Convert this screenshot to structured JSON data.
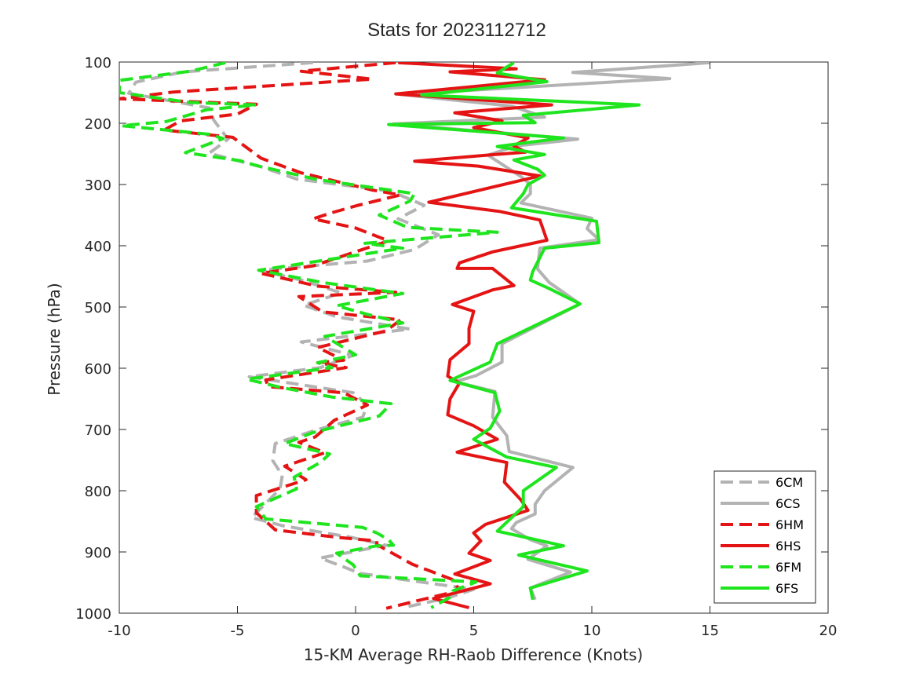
{
  "chart_data": {
    "type": "line",
    "title": "Stats for 2023112712",
    "xlabel": "15-KM Average RH-Raob Difference (Knots)",
    "ylabel": "Pressure (hPa)",
    "xlim": [
      -10,
      20
    ],
    "ylim": [
      100,
      1000
    ],
    "y_reversed": true,
    "xticks": [
      -10,
      -5,
      0,
      5,
      10,
      15,
      20
    ],
    "yticks": [
      100,
      200,
      300,
      400,
      500,
      600,
      700,
      800,
      900,
      1000
    ],
    "grid": false,
    "legend_position": "bottom-right",
    "series": [
      {
        "name": "6CM",
        "color": "#b3b3b3",
        "dash": true,
        "points": [
          [
            -1.8,
            101
          ],
          [
            -7.3,
            116
          ],
          [
            -9.3,
            133
          ],
          [
            -9.6,
            151
          ],
          [
            -6.2,
            175
          ],
          [
            -6.0,
            195
          ],
          [
            -5.4,
            226
          ],
          [
            -6.2,
            249
          ],
          [
            -4.0,
            271
          ],
          [
            -2.5,
            291
          ],
          [
            1.5,
            311
          ],
          [
            2.9,
            334
          ],
          [
            1.8,
            356
          ],
          [
            3.5,
            382
          ],
          [
            2.5,
            406
          ],
          [
            0.5,
            425
          ],
          [
            -4.1,
            440
          ],
          [
            -2.3,
            456
          ],
          [
            -0.6,
            477
          ],
          [
            -2.2,
            497
          ],
          [
            -0.8,
            516
          ],
          [
            2.3,
            536
          ],
          [
            -2.3,
            557
          ],
          [
            -0.1,
            579
          ],
          [
            -1.5,
            599
          ],
          [
            -4.5,
            614
          ],
          [
            -0.1,
            640
          ],
          [
            0.5,
            660
          ],
          [
            0.3,
            680
          ],
          [
            -1.6,
            700
          ],
          [
            -3.4,
            723
          ],
          [
            -3.5,
            751
          ],
          [
            -3.1,
            775
          ],
          [
            -3.2,
            797
          ],
          [
            -4.4,
            844
          ],
          [
            -3.1,
            857
          ],
          [
            -0.2,
            876
          ],
          [
            1.3,
            889
          ],
          [
            -1.5,
            910
          ],
          [
            -0.8,
            920
          ],
          [
            0.2,
            935
          ],
          [
            2.2,
            946
          ],
          [
            5.0,
            961
          ],
          [
            3.9,
            975
          ],
          [
            2.0,
            991
          ]
        ]
      },
      {
        "name": "6CS",
        "color": "#b3b3b3",
        "dash": false,
        "points": [
          [
            15.0,
            101
          ],
          [
            9.2,
            117
          ],
          [
            13.3,
            127
          ],
          [
            1.9,
            153
          ],
          [
            6.6,
            172
          ],
          [
            8.0,
            190
          ],
          [
            1.6,
            201
          ],
          [
            9.4,
            226
          ],
          [
            6.8,
            237
          ],
          [
            5.6,
            252
          ],
          [
            7.0,
            287
          ],
          [
            7.4,
            300
          ],
          [
            7.4,
            315
          ],
          [
            7.0,
            330
          ],
          [
            10.0,
            355
          ],
          [
            9.8,
            372
          ],
          [
            10.3,
            390
          ],
          [
            7.8,
            404
          ],
          [
            7.7,
            438
          ],
          [
            8.2,
            460
          ],
          [
            9.5,
            495
          ],
          [
            6.2,
            560
          ],
          [
            6.2,
            590
          ],
          [
            5.1,
            612
          ],
          [
            4.2,
            622
          ],
          [
            5.9,
            638
          ],
          [
            5.8,
            680
          ],
          [
            6.4,
            710
          ],
          [
            6.5,
            736
          ],
          [
            9.2,
            762
          ],
          [
            8.0,
            800
          ],
          [
            7.6,
            822
          ],
          [
            7.6,
            838
          ],
          [
            6.8,
            852
          ],
          [
            6.6,
            862
          ],
          [
            7.4,
            880
          ],
          [
            8.1,
            890
          ],
          [
            7.3,
            912
          ],
          [
            9.1,
            933
          ],
          [
            7.4,
            959
          ],
          [
            7.6,
            978
          ]
        ]
      },
      {
        "name": "6HM",
        "color": "#e51414",
        "dash": true,
        "points": [
          [
            1.7,
            101
          ],
          [
            -2.3,
            115
          ],
          [
            0.7,
            128
          ],
          [
            -7.7,
            149
          ],
          [
            -10.0,
            160
          ],
          [
            -4.2,
            169
          ],
          [
            -5.0,
            185
          ],
          [
            -7.4,
            196
          ],
          [
            -8.1,
            211
          ],
          [
            -5.2,
            223
          ],
          [
            -4.0,
            257
          ],
          [
            -2.3,
            281
          ],
          [
            0.7,
            309
          ],
          [
            1.9,
            317
          ],
          [
            0.1,
            334
          ],
          [
            -1.0,
            346
          ],
          [
            -1.8,
            356
          ],
          [
            0.0,
            371
          ],
          [
            1.4,
            392
          ],
          [
            0.3,
            406
          ],
          [
            -1.8,
            433
          ],
          [
            -4.0,
            445
          ],
          [
            -1.6,
            466
          ],
          [
            1.7,
            476
          ],
          [
            -2.4,
            483
          ],
          [
            -1.4,
            508
          ],
          [
            1.9,
            521
          ],
          [
            1.3,
            539
          ],
          [
            -1.6,
            566
          ],
          [
            -0.5,
            587
          ],
          [
            -1.6,
            591
          ],
          [
            -0.4,
            599
          ],
          [
            -3.8,
            619
          ],
          [
            -3.7,
            630
          ],
          [
            -0.5,
            640
          ],
          [
            0.5,
            660
          ],
          [
            -0.9,
            685
          ],
          [
            -1.7,
            712
          ],
          [
            -2.4,
            721
          ],
          [
            -1.3,
            738
          ],
          [
            -3.0,
            760
          ],
          [
            -2.1,
            782
          ],
          [
            -4.2,
            808
          ],
          [
            -4.2,
            836
          ],
          [
            -3.4,
            864
          ],
          [
            -0.8,
            876
          ],
          [
            0.9,
            882
          ],
          [
            0.9,
            888
          ],
          [
            2.4,
            920
          ],
          [
            4.1,
            945
          ],
          [
            4.4,
            963
          ],
          [
            1.3,
            992
          ]
        ]
      },
      {
        "name": "6HS",
        "color": "#e51414",
        "dash": false,
        "points": [
          [
            1.8,
            101
          ],
          [
            6.8,
            111
          ],
          [
            4.0,
            116
          ],
          [
            8.0,
            129
          ],
          [
            1.7,
            152
          ],
          [
            8.3,
            170
          ],
          [
            4.2,
            183
          ],
          [
            6.2,
            196
          ],
          [
            5.0,
            207
          ],
          [
            7.3,
            224
          ],
          [
            6.7,
            237
          ],
          [
            7.2,
            247
          ],
          [
            5.9,
            251
          ],
          [
            2.5,
            262
          ],
          [
            5.2,
            270
          ],
          [
            7.8,
            286
          ],
          [
            3.1,
            329
          ],
          [
            6.1,
            344
          ],
          [
            7.8,
            358
          ],
          [
            8.1,
            391
          ],
          [
            5.8,
            410
          ],
          [
            4.4,
            428
          ],
          [
            4.3,
            437
          ],
          [
            5.8,
            437
          ],
          [
            6.7,
            465
          ],
          [
            5.8,
            472
          ],
          [
            4.1,
            496
          ],
          [
            5.0,
            507
          ],
          [
            4.8,
            535
          ],
          [
            4.8,
            560
          ],
          [
            4.0,
            586
          ],
          [
            3.9,
            613
          ],
          [
            4.4,
            624
          ],
          [
            4.0,
            650
          ],
          [
            3.9,
            676
          ],
          [
            5.0,
            694
          ],
          [
            6.0,
            716
          ],
          [
            4.3,
            737
          ],
          [
            6.4,
            754
          ],
          [
            6.3,
            786
          ],
          [
            7.0,
            815
          ],
          [
            7.3,
            832
          ],
          [
            5.5,
            855
          ],
          [
            5.0,
            869
          ],
          [
            5.3,
            882
          ],
          [
            4.8,
            902
          ],
          [
            5.7,
            914
          ],
          [
            4.2,
            936
          ],
          [
            5.7,
            952
          ],
          [
            3.3,
            976
          ],
          [
            4.8,
            991
          ]
        ]
      },
      {
        "name": "6FM",
        "color": "#1ee51e",
        "dash": true,
        "points": [
          [
            -5.5,
            101
          ],
          [
            -7.0,
            115
          ],
          [
            -10.0,
            130
          ],
          [
            -10.0,
            150
          ],
          [
            -7.0,
            166
          ],
          [
            -4.2,
            170
          ],
          [
            -6.3,
            178
          ],
          [
            -8.0,
            197
          ],
          [
            -9.9,
            204
          ],
          [
            -6.2,
            218
          ],
          [
            -5.6,
            225
          ],
          [
            -7.2,
            248
          ],
          [
            -4.9,
            261
          ],
          [
            -4.2,
            269
          ],
          [
            -1.6,
            292
          ],
          [
            2.5,
            315
          ],
          [
            2.3,
            327
          ],
          [
            1.0,
            350
          ],
          [
            2.2,
            370
          ],
          [
            6.0,
            378
          ],
          [
            0.4,
            396
          ],
          [
            2.0,
            404
          ],
          [
            -4.1,
            440
          ],
          [
            -1.4,
            460
          ],
          [
            2.0,
            478
          ],
          [
            -0.8,
            498
          ],
          [
            0.5,
            512
          ],
          [
            2.0,
            526
          ],
          [
            -1.3,
            548
          ],
          [
            0.0,
            578
          ],
          [
            -1.6,
            591
          ],
          [
            -1.0,
            599
          ],
          [
            -4.6,
            618
          ],
          [
            -3.2,
            631
          ],
          [
            -1.0,
            647
          ],
          [
            1.5,
            658
          ],
          [
            1.0,
            678
          ],
          [
            -1.8,
            705
          ],
          [
            -3.0,
            723
          ],
          [
            -1.1,
            740
          ],
          [
            -1.5,
            754
          ],
          [
            -2.6,
            778
          ],
          [
            -2.5,
            797
          ],
          [
            -4.2,
            826
          ],
          [
            -3.8,
            846
          ],
          [
            0.3,
            860
          ],
          [
            0.9,
            869
          ],
          [
            1.4,
            880
          ],
          [
            1.6,
            889
          ],
          [
            0.9,
            890
          ],
          [
            -0.8,
            902
          ],
          [
            -0.1,
            921
          ],
          [
            0.2,
            939
          ],
          [
            5.1,
            949
          ],
          [
            4.1,
            964
          ],
          [
            4.0,
            974
          ],
          [
            3.2,
            991
          ]
        ]
      },
      {
        "name": "6FS",
        "color": "#1ee51e",
        "dash": false,
        "points": [
          [
            6.7,
            101
          ],
          [
            6.0,
            118
          ],
          [
            8.1,
            132
          ],
          [
            2.8,
            154
          ],
          [
            12.0,
            170
          ],
          [
            7.1,
            187
          ],
          [
            7.6,
            199
          ],
          [
            1.4,
            202
          ],
          [
            8.8,
            224
          ],
          [
            6.0,
            238
          ],
          [
            8.0,
            251
          ],
          [
            6.7,
            260
          ],
          [
            7.7,
            275
          ],
          [
            8.0,
            285
          ],
          [
            7.3,
            300
          ],
          [
            7.1,
            315
          ],
          [
            6.6,
            338
          ],
          [
            10.2,
            360
          ],
          [
            10.3,
            395
          ],
          [
            8.0,
            404
          ],
          [
            7.5,
            442
          ],
          [
            7.4,
            456
          ],
          [
            8.2,
            470
          ],
          [
            9.5,
            495
          ],
          [
            6.0,
            560
          ],
          [
            5.7,
            590
          ],
          [
            4.0,
            620
          ],
          [
            5.9,
            640
          ],
          [
            6.1,
            670
          ],
          [
            5.7,
            698
          ],
          [
            5.0,
            716
          ],
          [
            6.4,
            745
          ],
          [
            8.5,
            762
          ],
          [
            7.1,
            800
          ],
          [
            7.1,
            826
          ],
          [
            6.0,
            866
          ],
          [
            8.8,
            890
          ],
          [
            6.9,
            905
          ],
          [
            9.8,
            931
          ],
          [
            7.4,
            959
          ],
          [
            7.5,
            978
          ]
        ]
      }
    ]
  }
}
